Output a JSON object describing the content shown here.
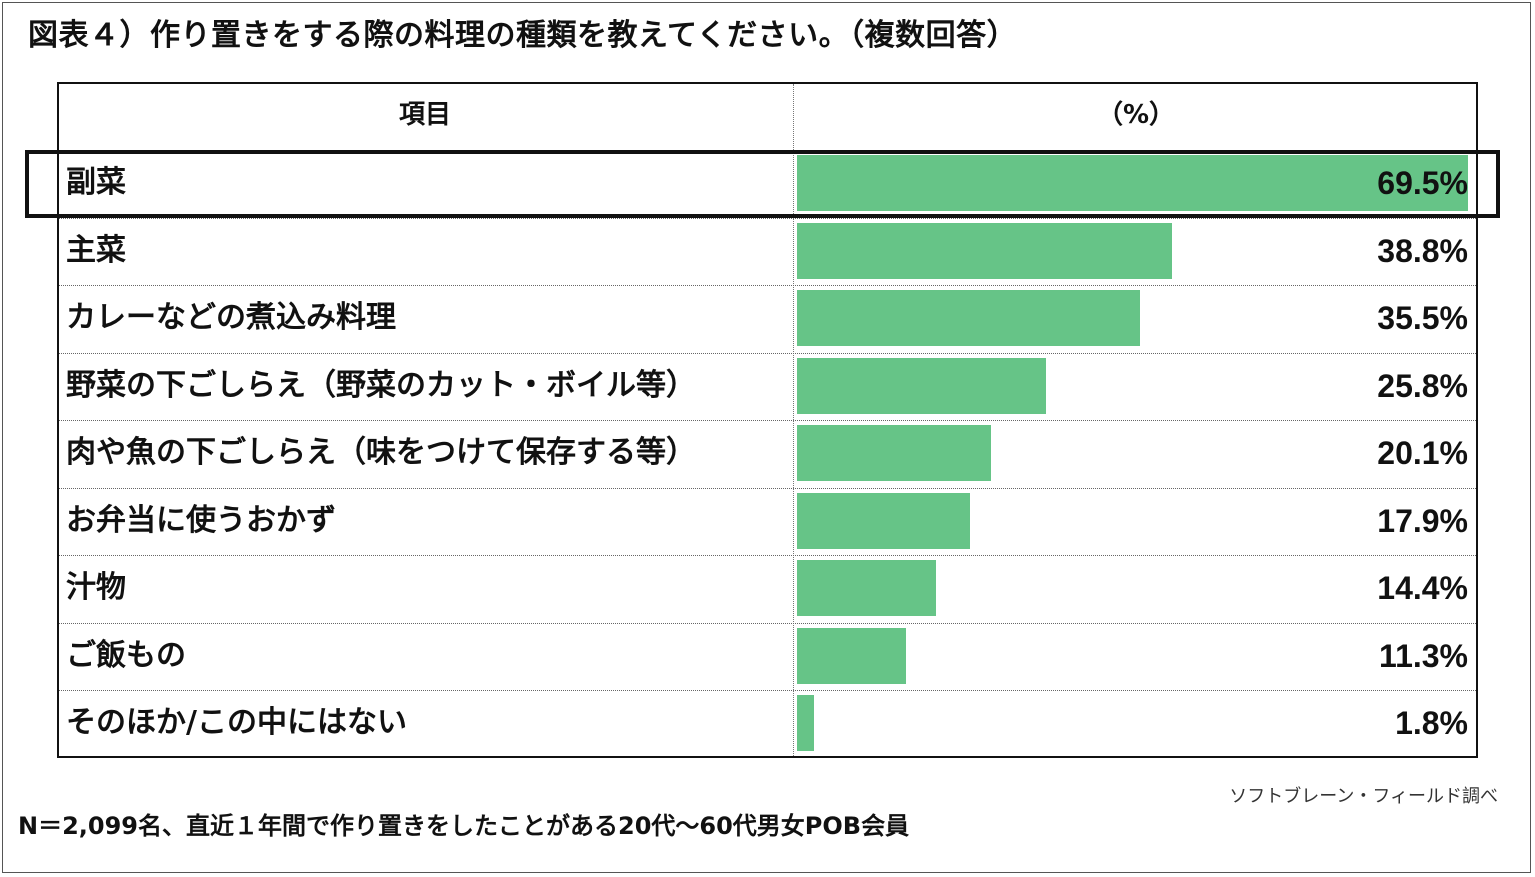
{
  "chart_data": {
    "type": "bar",
    "title": "図表４）作り置きをする際の料理の種類を教えてください。（複数回答）",
    "header": {
      "label_column": "項目",
      "value_column": "（%）"
    },
    "categories": [
      "副菜",
      "主菜",
      "カレーなどの煮込み料理",
      "野菜の下ごしらえ（野菜のカット・ボイル等）",
      "肉や魚の下ごしらえ（味をつけて保存する等）",
      "お弁当に使うおかず",
      "汁物",
      "ご飯もの",
      "そのほか/この中にはない"
    ],
    "values": [
      69.5,
      38.8,
      35.5,
      25.8,
      20.1,
      17.9,
      14.4,
      11.3,
      1.8
    ],
    "value_labels": [
      "69.5%",
      "38.8%",
      "35.5%",
      "25.8%",
      "20.1%",
      "17.9%",
      "14.4%",
      "11.3%",
      "1.8%"
    ],
    "orientation": "horizontal",
    "highlighted_category": "副菜",
    "bar_color": "#66c487",
    "source": "ソフトブレーン・フィールド調べ",
    "footnote": "N＝2,099名、直近１年間で作り置きをしたことがある20代～60代男女POB会員"
  }
}
